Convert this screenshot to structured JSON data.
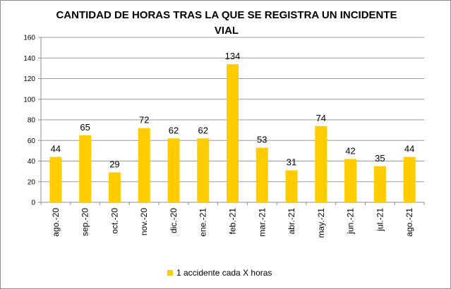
{
  "chart_data": {
    "type": "bar",
    "title_lines": [
      "CANTIDAD DE HORAS TRAS LA QUE SE REGISTRA UN INCIDENTE",
      "VIAL"
    ],
    "categories": [
      "ago.-20",
      "sep.-20",
      "oct.-20",
      "nov.-20",
      "dic.-20",
      "ene.-21",
      "feb.-21",
      "mar.-21",
      "abr.-21",
      "may.-21",
      "jun.-21",
      "jul.-21",
      "ago.-21"
    ],
    "series": [
      {
        "name": "1 accidente cada X horas",
        "values": [
          44,
          65,
          29,
          72,
          62,
          62,
          134,
          53,
          31,
          74,
          42,
          35,
          44
        ]
      }
    ],
    "ylim": [
      0,
      160
    ],
    "yticks": [
      0,
      20,
      40,
      60,
      80,
      100,
      120,
      140,
      160
    ],
    "grid": true,
    "legend_position": "bottom",
    "colors": {
      "bar": "#FFCC00",
      "grid": "#9a9a9a",
      "axis": "#8c8c8c"
    }
  }
}
